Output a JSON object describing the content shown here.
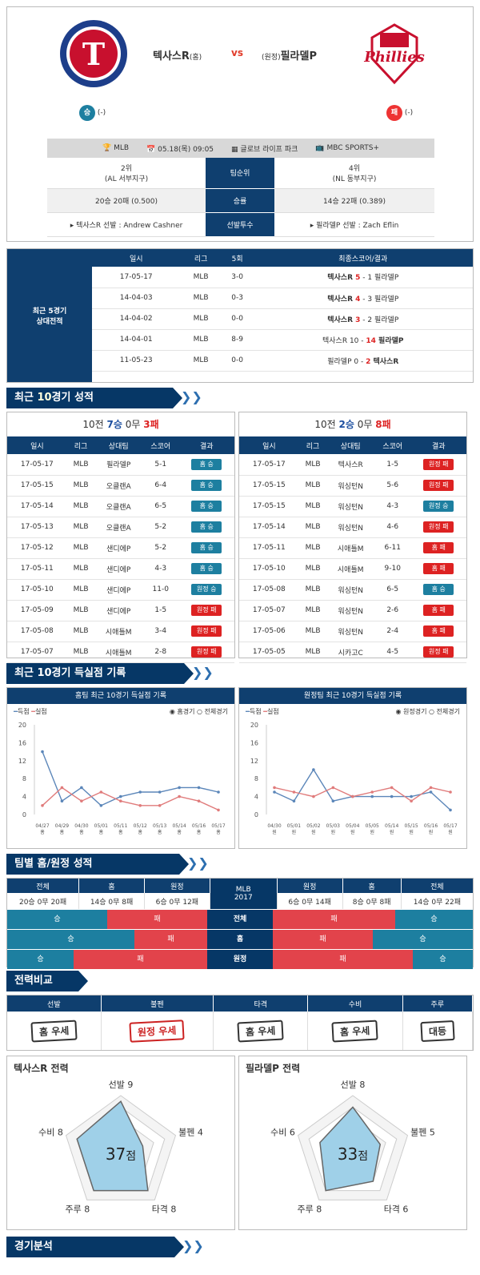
{
  "match": {
    "home_name": "텍사스R",
    "home_tag": "(홈)",
    "vs": "vs",
    "away_tag": "(원정)",
    "away_name": "필라델P",
    "home_result": "승",
    "home_result_note": "(-)",
    "away_result": "패",
    "away_result_note": "(-)"
  },
  "info": {
    "league": "MLB",
    "date": "05.18(목) 09:05",
    "stadium": "글로브 라이프 파크",
    "tv": "MBC SPORTS+",
    "rows": [
      {
        "home": "2위\n(AL 서부지구)",
        "label": "팀순위",
        "away": "4위\n(NL 동부지구)"
      },
      {
        "home": "20승 20패 (0.500)",
        "label": "승률",
        "away": "14승 22패 (0.389)"
      },
      {
        "home": "▸ 텍사스R 선발 : Andrew Cashner",
        "label": "선발투수",
        "away": "▸ 필라델P 선발 : Zach Eflin"
      }
    ]
  },
  "h2h": {
    "side_label": "최근 5경기\n상대전적",
    "headers": [
      "일시",
      "리그",
      "5회",
      "최종스코어/결과"
    ],
    "rows": [
      [
        "17-05-17",
        "MLB",
        "3-0",
        "텍사스R",
        "5",
        "1",
        "필라델P",
        "home"
      ],
      [
        "14-04-03",
        "MLB",
        "0-3",
        "텍사스R",
        "4",
        "3",
        "필라델P",
        "home"
      ],
      [
        "14-04-02",
        "MLB",
        "0-0",
        "텍사스R",
        "3",
        "2",
        "필라델P",
        "home"
      ],
      [
        "14-04-01",
        "MLB",
        "8-9",
        "텍사스R",
        "10",
        "14",
        "필라델P",
        "away"
      ],
      [
        "11-05-23",
        "MLB",
        "0-0",
        "필라델P",
        "0",
        "2",
        "텍사스R",
        "away"
      ]
    ]
  },
  "recent": {
    "title_pre": "최근 ",
    "title_num": "10",
    "title_post": "경기 성적",
    "headers": [
      "일시",
      "리그",
      "상대팀",
      "스코어",
      "결과"
    ],
    "home_summary": {
      "pre": "10전 ",
      "w": "7승",
      "d": "0무",
      "l": "3패"
    },
    "away_summary": {
      "pre": "10전 ",
      "w": "2승",
      "d": "0무",
      "l": "8패"
    },
    "home_rows": [
      [
        "17-05-17",
        "MLB",
        "필라델P",
        "5-1",
        "홈 승",
        "blue"
      ],
      [
        "17-05-15",
        "MLB",
        "오클랜A",
        "6-4",
        "홈 승",
        "blue"
      ],
      [
        "17-05-14",
        "MLB",
        "오클랜A",
        "6-5",
        "홈 승",
        "blue"
      ],
      [
        "17-05-13",
        "MLB",
        "오클랜A",
        "5-2",
        "홈 승",
        "blue"
      ],
      [
        "17-05-12",
        "MLB",
        "샌디에P",
        "5-2",
        "홈 승",
        "blue"
      ],
      [
        "17-05-11",
        "MLB",
        "샌디에P",
        "4-3",
        "홈 승",
        "blue"
      ],
      [
        "17-05-10",
        "MLB",
        "샌디에P",
        "11-0",
        "원정 승",
        "blue"
      ],
      [
        "17-05-09",
        "MLB",
        "샌디에P",
        "1-5",
        "원정 패",
        "red"
      ],
      [
        "17-05-08",
        "MLB",
        "시애틀M",
        "3-4",
        "원정 패",
        "red"
      ],
      [
        "17-05-07",
        "MLB",
        "시애틀M",
        "2-8",
        "원정 패",
        "red"
      ]
    ],
    "away_rows": [
      [
        "17-05-17",
        "MLB",
        "텍사스R",
        "1-5",
        "원정 패",
        "red"
      ],
      [
        "17-05-15",
        "MLB",
        "워싱턴N",
        "5-6",
        "원정 패",
        "red"
      ],
      [
        "17-05-15",
        "MLB",
        "워싱턴N",
        "4-3",
        "원정 승",
        "blue"
      ],
      [
        "17-05-14",
        "MLB",
        "워싱턴N",
        "4-6",
        "원정 패",
        "red"
      ],
      [
        "17-05-11",
        "MLB",
        "시애틀M",
        "6-11",
        "홈 패",
        "red"
      ],
      [
        "17-05-10",
        "MLB",
        "시애틀M",
        "9-10",
        "홈 패",
        "red"
      ],
      [
        "17-05-08",
        "MLB",
        "워싱턴N",
        "6-5",
        "홈 승",
        "blue"
      ],
      [
        "17-05-07",
        "MLB",
        "워싱턴N",
        "2-6",
        "홈 패",
        "red"
      ],
      [
        "17-05-06",
        "MLB",
        "워싱턴N",
        "2-4",
        "홈 패",
        "red"
      ],
      [
        "17-05-05",
        "MLB",
        "시카고C",
        "4-5",
        "원정 패",
        "red"
      ]
    ]
  },
  "scoring": {
    "title_pre": "최근 ",
    "title_num": "10",
    "title_post": "경기 득실점 기록",
    "left_title": "홈팀 최근 10경기 득실점 기록",
    "right_title": "원정팀 최근 10경기 득실점 기록",
    "legend_score": "득점",
    "legend_allowed": "실점",
    "left_opt1": "홈경기",
    "left_opt2": "전체경기",
    "right_opt1": "원정경기",
    "right_opt2": "전체경기"
  },
  "chart_data": [
    {
      "type": "line",
      "ylim": [
        0,
        20
      ],
      "yticks": [
        0,
        4,
        8,
        12,
        16,
        20
      ],
      "x": [
        "04/27",
        "04/29",
        "04/30",
        "05/01",
        "05/11",
        "05/12",
        "05/13",
        "05/14",
        "05/16",
        "05/17"
      ],
      "x_sub": "홈",
      "series": [
        {
          "name": "득점",
          "color": "#5b86b9",
          "values": [
            14,
            3,
            6,
            2,
            4,
            5,
            5,
            6,
            6,
            5
          ]
        },
        {
          "name": "실점",
          "color": "#e07b7b",
          "values": [
            2,
            6,
            3,
            5,
            3,
            2,
            2,
            4,
            3,
            1
          ]
        }
      ]
    },
    {
      "type": "line",
      "ylim": [
        0,
        20
      ],
      "yticks": [
        0,
        4,
        8,
        12,
        16,
        20
      ],
      "x": [
        "04/30",
        "05/01",
        "05/02",
        "05/03",
        "05/04",
        "05/05",
        "05/14",
        "05/15",
        "05/16",
        "05/17"
      ],
      "x_sub": "원",
      "series": [
        {
          "name": "득점",
          "color": "#5b86b9",
          "values": [
            5,
            3,
            10,
            3,
            4,
            4,
            4,
            4,
            5,
            1
          ]
        },
        {
          "name": "실점",
          "color": "#e07b7b",
          "values": [
            6,
            5,
            4,
            6,
            4,
            5,
            6,
            3,
            6,
            5
          ]
        }
      ]
    }
  ],
  "homeaway": {
    "title": "팀별 홈/원정 성적",
    "headers_left": [
      "전체",
      "홈",
      "원정"
    ],
    "mid": "MLB\n2017",
    "headers_right": [
      "원정",
      "홈",
      "전체"
    ],
    "left_vals": [
      "20승 0무 20패",
      "14승 0무 8패",
      "6승 0무 12패"
    ],
    "right_vals": [
      "6승 0무 14패",
      "8승 0무 8패",
      "14승 0무 22패"
    ],
    "bars": [
      {
        "label": "전체",
        "l_win": "승",
        "l_loss": "패",
        "l_ratio": 0.5,
        "r_loss": "패",
        "r_win": "승",
        "r_ratio": 0.389
      },
      {
        "label": "홈",
        "l_win": "승",
        "l_loss": "패",
        "l_ratio": 0.636,
        "r_loss": "패",
        "r_win": "승",
        "r_ratio": 0.5
      },
      {
        "label": "원정",
        "l_win": "승",
        "l_loss": "패",
        "l_ratio": 0.333,
        "r_loss": "패",
        "r_win": "승",
        "r_ratio": 0.3
      }
    ]
  },
  "power": {
    "title": "전력비교",
    "headers": [
      "선발",
      "불펜",
      "타격",
      "수비",
      "주루"
    ],
    "stamps": [
      {
        "t": "홈 우세",
        "c": "#333"
      },
      {
        "t": "원정 우세",
        "c": "#c22"
      },
      {
        "t": "홈 우세",
        "c": "#333"
      },
      {
        "t": "홈 우세",
        "c": "#333"
      },
      {
        "t": "대등",
        "c": "#333"
      }
    ]
  },
  "radar": [
    {
      "title": "텍사스R 전력",
      "score": "37",
      "unit": "점",
      "labels": [
        "선발 9",
        "불펜 4",
        "타격 8",
        "주루 8",
        "수비 8"
      ],
      "values": [
        9,
        4,
        8,
        8,
        8
      ]
    },
    {
      "title": "필라델P 전력",
      "score": "33",
      "unit": "점",
      "labels": [
        "선발 8",
        "불펜 5",
        "타격 6",
        "주루 8",
        "수비 6"
      ],
      "values": [
        8,
        5,
        6,
        8,
        6
      ]
    }
  ],
  "analysis": {
    "title": "경기분석"
  }
}
